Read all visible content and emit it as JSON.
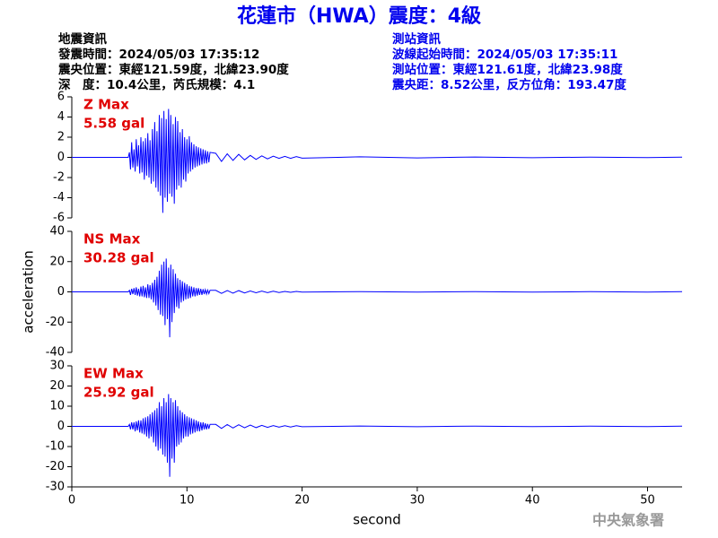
{
  "header": {
    "title": "花蓮市（HWA）震度：4級",
    "left": [
      "地震資訊",
      "發震時間：2024/05/03 17:35:12",
      "震央位置：東經121.59度，北緯23.90度",
      "深　度：10.4公里，芮氏規模：4.1"
    ],
    "right": [
      "測站資訊",
      "波線起始時間：2024/05/03 17:35:11",
      "測站位置：東經121.61度，北緯23.98度",
      "震央距：8.52公里，反方位角：193.47度"
    ]
  },
  "footer": "中央氣象署",
  "chart_data": [
    {
      "type": "line",
      "annotations": [
        "Z Max",
        "5.58 gal"
      ],
      "annotation_color": "#e00000",
      "xlim": [
        0,
        53
      ],
      "ylim": [
        -6,
        6
      ],
      "yticks": [
        -6,
        -4,
        -2,
        0,
        2,
        4,
        6
      ],
      "x": [
        0,
        4.9,
        5.0,
        5.1,
        5.2,
        5.3,
        5.4,
        5.5,
        5.6,
        5.7,
        5.8,
        5.9,
        6.0,
        6.1,
        6.2,
        6.3,
        6.4,
        6.5,
        6.6,
        6.7,
        6.8,
        6.9,
        7.0,
        7.1,
        7.2,
        7.3,
        7.4,
        7.5,
        7.6,
        7.7,
        7.8,
        7.9,
        8.0,
        8.1,
        8.2,
        8.3,
        8.4,
        8.5,
        8.6,
        8.7,
        8.8,
        8.9,
        9.0,
        9.1,
        9.2,
        9.3,
        9.4,
        9.5,
        9.6,
        9.7,
        9.8,
        9.9,
        10.0,
        10.1,
        10.2,
        10.3,
        10.4,
        10.5,
        10.6,
        10.7,
        10.8,
        10.9,
        11.0,
        11.1,
        11.2,
        11.3,
        11.4,
        11.5,
        11.6,
        11.7,
        11.8,
        11.9,
        12.0,
        12.5,
        13,
        13.5,
        14,
        14.5,
        15,
        15.5,
        16,
        16.5,
        17,
        17.5,
        18,
        18.5,
        19,
        19.5,
        20,
        25,
        30,
        35,
        40,
        45,
        50,
        53
      ],
      "series": [
        {
          "color": "#0000ff",
          "values": [
            0,
            0,
            0.5,
            -1.2,
            1.5,
            -1.0,
            0.8,
            -1.4,
            1.8,
            -0.9,
            1.2,
            -1.6,
            2.0,
            -1.5,
            1.6,
            -2.2,
            1.9,
            -1.8,
            2.4,
            -2.0,
            1.7,
            -2.6,
            2.8,
            -2.4,
            3.5,
            -3.0,
            2.6,
            -3.4,
            4.2,
            -3.8,
            3.9,
            -5.5,
            4.6,
            -4.0,
            3.8,
            -4.4,
            4.8,
            -3.6,
            4.2,
            -3.9,
            3.3,
            -4.6,
            4.0,
            -3.2,
            3.6,
            -2.8,
            2.5,
            -3.0,
            2.8,
            -2.2,
            2.0,
            -2.4,
            1.8,
            -1.6,
            2.1,
            -1.4,
            1.5,
            -1.2,
            1.3,
            -1.0,
            1.1,
            -0.9,
            1.0,
            -0.8,
            0.9,
            -0.7,
            0.8,
            -0.6,
            0.7,
            -0.6,
            0.6,
            -0.5,
            0.5,
            0.4,
            -0.4,
            0.35,
            -0.3,
            0.3,
            -0.25,
            0.2,
            -0.2,
            0.15,
            -0.15,
            0.12,
            -0.1,
            0.1,
            -0.1,
            0.08,
            -0.08,
            0.05,
            -0.05,
            0.04,
            -0.04,
            0.03,
            -0.03,
            0.02
          ]
        }
      ]
    },
    {
      "type": "line",
      "annotations": [
        "NS Max",
        "30.28 gal"
      ],
      "annotation_color": "#e00000",
      "ylabel": "acceleration",
      "xlim": [
        0,
        53
      ],
      "ylim": [
        -40,
        40
      ],
      "yticks": [
        -40,
        -20,
        0,
        20,
        40
      ],
      "x": [
        0,
        4.9,
        5.0,
        5.1,
        5.2,
        5.3,
        5.4,
        5.5,
        5.6,
        5.7,
        5.8,
        5.9,
        6.0,
        6.1,
        6.2,
        6.3,
        6.4,
        6.5,
        6.6,
        6.7,
        6.8,
        6.9,
        7.0,
        7.1,
        7.2,
        7.3,
        7.4,
        7.5,
        7.6,
        7.7,
        7.8,
        7.9,
        8.0,
        8.1,
        8.2,
        8.3,
        8.4,
        8.5,
        8.6,
        8.7,
        8.8,
        8.9,
        9.0,
        9.1,
        9.2,
        9.3,
        9.4,
        9.5,
        9.6,
        9.7,
        9.8,
        9.9,
        10.0,
        10.1,
        10.2,
        10.3,
        10.4,
        10.5,
        10.6,
        10.7,
        10.8,
        10.9,
        11.0,
        11.1,
        11.2,
        11.3,
        11.4,
        11.5,
        11.6,
        11.7,
        11.8,
        11.9,
        12.0,
        12.5,
        13,
        13.5,
        14,
        14.5,
        15,
        15.5,
        16,
        16.5,
        17,
        17.5,
        18,
        18.5,
        19,
        19.5,
        20,
        25,
        30,
        35,
        40,
        45,
        50,
        53
      ],
      "series": [
        {
          "color": "#0000ff",
          "values": [
            0,
            0,
            1,
            -2,
            2,
            -1.5,
            2.5,
            -2,
            3,
            -2.5,
            2,
            -3,
            3.5,
            -3,
            4,
            -3.5,
            3,
            -4,
            5,
            -4,
            4.5,
            -5,
            6,
            -7,
            8,
            -9,
            10,
            -12,
            14,
            -15,
            18,
            -16,
            20,
            -22,
            22,
            -18,
            16,
            -30,
            18,
            -20,
            15,
            -14,
            12,
            -10,
            9,
            -11,
            8,
            -7,
            7,
            -6,
            6,
            -5,
            5,
            -4.5,
            4,
            -4,
            3.5,
            -3,
            3,
            -3,
            2.5,
            -2.5,
            2.5,
            -2,
            2,
            -2,
            1.8,
            -1.5,
            1.5,
            -1.5,
            1.2,
            -1.2,
            1,
            1,
            -1,
            0.9,
            -0.8,
            0.8,
            -0.7,
            0.6,
            -0.6,
            0.5,
            -0.5,
            0.4,
            -0.4,
            0.3,
            -0.3,
            0.3,
            -0.2,
            0.2,
            -0.2,
            0.15,
            -0.15,
            0.1,
            -0.1,
            0.1
          ]
        }
      ]
    },
    {
      "type": "line",
      "annotations": [
        "EW Max",
        "25.92 gal"
      ],
      "annotation_color": "#e00000",
      "xlabel": "second",
      "xlim": [
        0,
        53
      ],
      "xticks": [
        0,
        10,
        20,
        30,
        40,
        50
      ],
      "ylim": [
        -30,
        30
      ],
      "yticks": [
        -30,
        -20,
        -10,
        0,
        10,
        20,
        30
      ],
      "x": [
        0,
        4.9,
        5.0,
        5.1,
        5.2,
        5.3,
        5.4,
        5.5,
        5.6,
        5.7,
        5.8,
        5.9,
        6.0,
        6.1,
        6.2,
        6.3,
        6.4,
        6.5,
        6.6,
        6.7,
        6.8,
        6.9,
        7.0,
        7.1,
        7.2,
        7.3,
        7.4,
        7.5,
        7.6,
        7.7,
        7.8,
        7.9,
        8.0,
        8.1,
        8.2,
        8.3,
        8.4,
        8.5,
        8.6,
        8.7,
        8.8,
        8.9,
        9.0,
        9.1,
        9.2,
        9.3,
        9.4,
        9.5,
        9.6,
        9.7,
        9.8,
        9.9,
        10.0,
        10.1,
        10.2,
        10.3,
        10.4,
        10.5,
        10.6,
        10.7,
        10.8,
        10.9,
        11.0,
        11.1,
        11.2,
        11.3,
        11.4,
        11.5,
        11.6,
        11.7,
        11.8,
        11.9,
        12.0,
        12.5,
        13,
        13.5,
        14,
        14.5,
        15,
        15.5,
        16,
        16.5,
        17,
        17.5,
        18,
        18.5,
        19,
        19.5,
        20,
        25,
        30,
        35,
        40,
        45,
        50,
        53
      ],
      "series": [
        {
          "color": "#0000ff",
          "values": [
            0,
            0,
            1,
            -1.5,
            2,
            -1.5,
            2,
            -2.5,
            2.5,
            -2,
            3,
            -3,
            3,
            -3.5,
            4,
            -4,
            4.5,
            -5,
            5,
            -6,
            6,
            -5,
            7,
            -8,
            8,
            -10,
            9,
            -12,
            12,
            -11,
            10,
            -14,
            14,
            -15,
            12,
            -18,
            16,
            -25,
            14,
            -16,
            12,
            -18,
            13,
            -10,
            10,
            -9,
            8,
            -8,
            7,
            -6,
            6,
            -5,
            5,
            -5,
            4.5,
            -4,
            4,
            -3.5,
            3.5,
            -3,
            3,
            -2.5,
            2.5,
            -2.5,
            2,
            -2,
            2,
            -1.5,
            1.5,
            -1.5,
            1.2,
            -1.2,
            1,
            1,
            -1,
            0.9,
            -0.8,
            0.8,
            -0.7,
            0.6,
            -0.6,
            0.5,
            -0.5,
            0.4,
            -0.4,
            0.3,
            -0.3,
            0.3,
            -0.2,
            0.2,
            -0.2,
            0.15,
            -0.15,
            0.1,
            -0.1,
            0.1
          ]
        }
      ]
    }
  ]
}
